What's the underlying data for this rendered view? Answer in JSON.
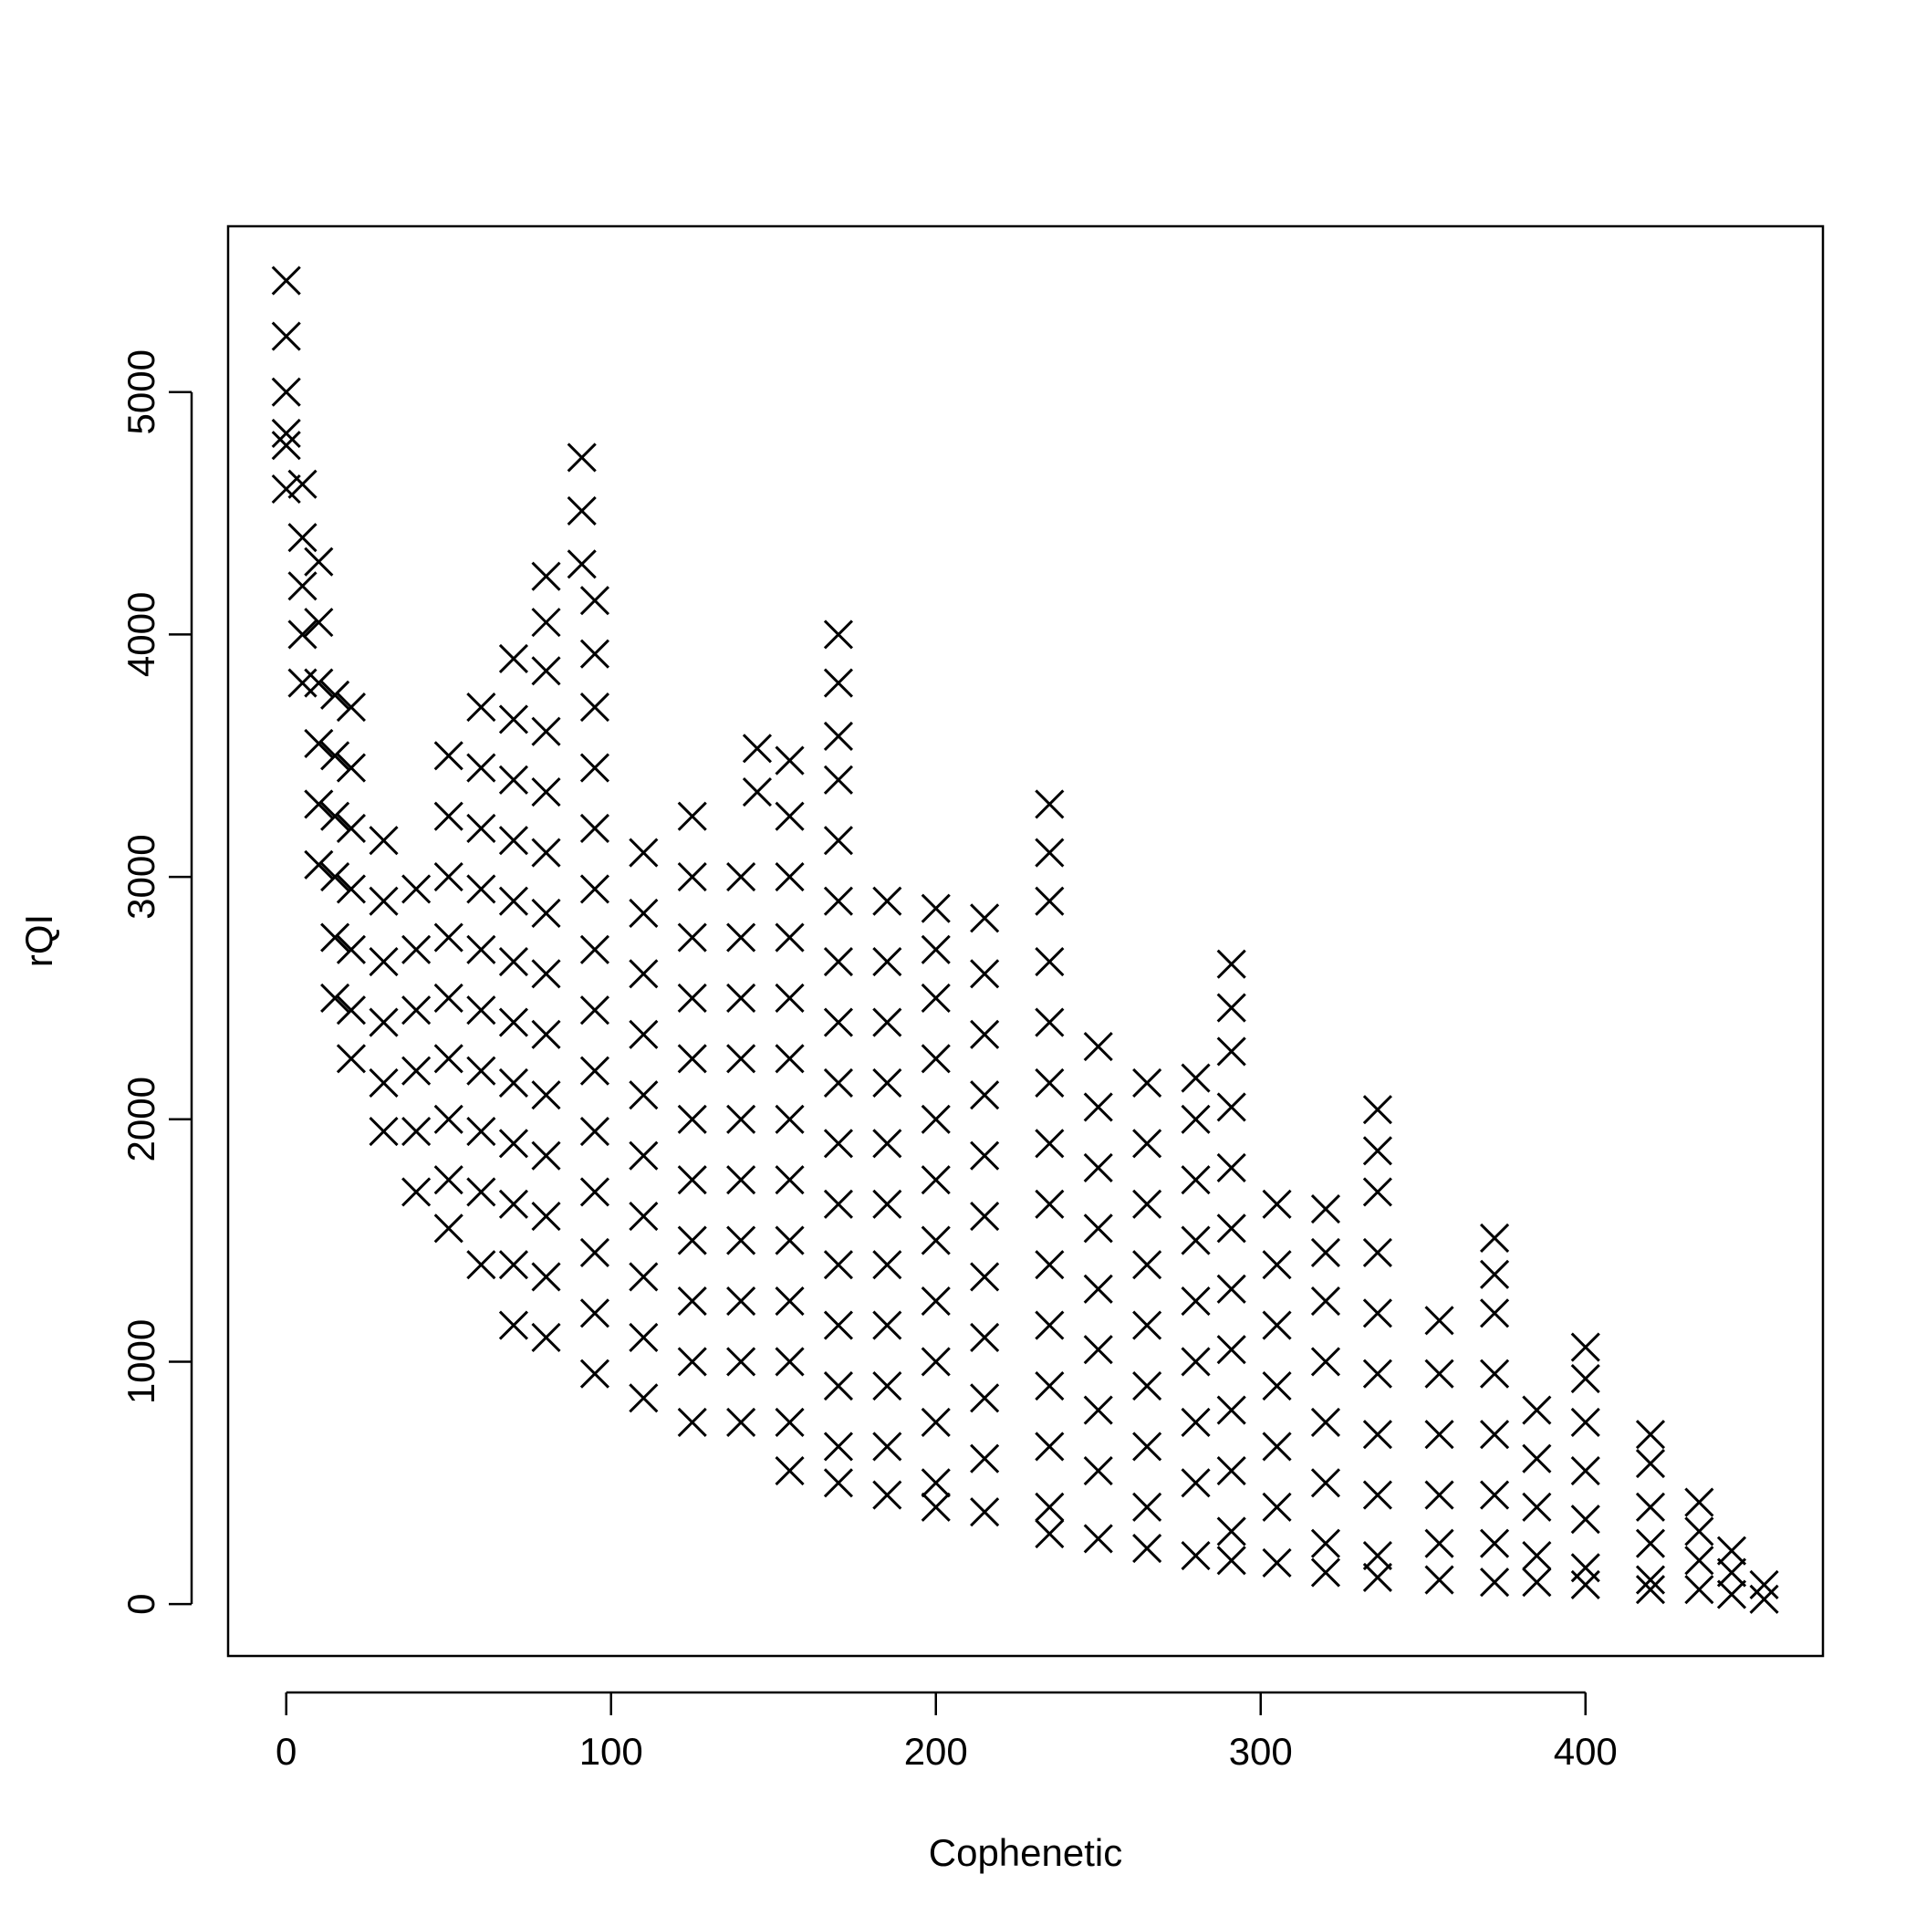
{
  "chart_data": {
    "type": "scatter",
    "xlabel": "Cophenetic",
    "ylabel": "rQI",
    "color": "#000000",
    "marker": "x",
    "x": [
      0,
      0,
      0,
      0,
      0,
      0,
      5,
      5,
      5,
      5,
      5,
      10,
      10,
      10,
      10,
      10,
      10,
      15,
      15,
      15,
      15,
      15,
      15,
      20,
      20,
      20,
      20,
      20,
      20,
      20,
      30,
      30,
      30,
      30,
      30,
      30,
      40,
      40,
      40,
      40,
      40,
      40,
      50,
      50,
      50,
      50,
      50,
      50,
      50,
      50,
      50,
      60,
      60,
      60,
      60,
      60,
      60,
      60,
      60,
      60,
      60,
      70,
      70,
      70,
      70,
      70,
      70,
      70,
      70,
      70,
      70,
      70,
      70,
      80,
      80,
      80,
      80,
      80,
      80,
      80,
      80,
      80,
      80,
      80,
      80,
      80,
      80,
      91,
      91,
      91,
      95,
      95,
      95,
      95,
      95,
      95,
      95,
      95,
      95,
      95,
      95,
      95,
      95,
      95,
      110,
      110,
      110,
      110,
      110,
      110,
      110,
      110,
      110,
      110,
      125,
      125,
      125,
      125,
      125,
      125,
      125,
      125,
      125,
      125,
      125,
      140,
      140,
      140,
      140,
      140,
      140,
      140,
      140,
      140,
      140,
      145,
      145,
      155,
      155,
      155,
      155,
      155,
      155,
      155,
      155,
      155,
      155,
      155,
      155,
      155,
      170,
      170,
      170,
      170,
      170,
      170,
      170,
      170,
      170,
      170,
      170,
      170,
      170,
      170,
      170,
      170,
      185,
      185,
      185,
      185,
      185,
      185,
      185,
      185,
      185,
      185,
      185,
      200,
      200,
      200,
      200,
      200,
      200,
      200,
      200,
      200,
      200,
      200,
      200,
      215,
      215,
      215,
      215,
      215,
      215,
      215,
      215,
      215,
      215,
      215,
      235,
      235,
      235,
      235,
      235,
      235,
      235,
      235,
      235,
      235,
      235,
      235,
      235,
      235,
      250,
      250,
      250,
      250,
      250,
      250,
      250,
      250,
      250,
      265,
      265,
      265,
      265,
      265,
      265,
      265,
      265,
      265,
      280,
      280,
      280,
      280,
      280,
      280,
      280,
      280,
      280,
      291,
      291,
      291,
      291,
      291,
      291,
      291,
      291,
      291,
      291,
      291,
      291,
      305,
      305,
      305,
      305,
      305,
      305,
      305,
      320,
      320,
      320,
      320,
      320,
      320,
      320,
      320,
      336,
      336,
      336,
      336,
      336,
      336,
      336,
      336,
      336,
      336,
      355,
      355,
      355,
      355,
      355,
      355,
      372,
      372,
      372,
      372,
      372,
      372,
      372,
      372,
      385,
      385,
      385,
      385,
      385,
      400,
      400,
      400,
      400,
      400,
      400,
      400,
      420,
      420,
      420,
      420,
      420,
      420,
      435,
      435,
      435,
      435,
      445,
      445,
      445,
      455,
      455
    ],
    "values": [
      5460,
      5230,
      5000,
      4830,
      4780,
      4600,
      4620,
      4400,
      4200,
      4000,
      3800,
      4300,
      4050,
      3800,
      3550,
      3300,
      3050,
      3750,
      3500,
      3250,
      3000,
      2750,
      2500,
      3700,
      3450,
      3200,
      2950,
      2700,
      2450,
      2250,
      3150,
      2900,
      2650,
      2400,
      2150,
      1950,
      2950,
      2700,
      2450,
      2200,
      1950,
      1700,
      3500,
      3250,
      3000,
      2750,
      2500,
      2250,
      2000,
      1750,
      1550,
      3700,
      3450,
      3200,
      2950,
      2700,
      2450,
      2200,
      1950,
      1700,
      1400,
      3900,
      3650,
      3400,
      3150,
      2900,
      2650,
      2400,
      2150,
      1900,
      1650,
      1400,
      1150,
      4240,
      4050,
      3850,
      3600,
      3350,
      3100,
      2850,
      2600,
      2350,
      2100,
      1850,
      1600,
      1350,
      1100,
      4730,
      4510,
      4290,
      4140,
      3920,
      3700,
      3450,
      3200,
      2950,
      2700,
      2450,
      2200,
      1950,
      1700,
      1450,
      1200,
      950,
      3100,
      2850,
      2600,
      2350,
      2100,
      1850,
      1600,
      1350,
      1100,
      850,
      3250,
      3000,
      2750,
      2500,
      2250,
      2000,
      1750,
      1500,
      1250,
      1000,
      750,
      3000,
      2750,
      2500,
      2250,
      2000,
      1750,
      1500,
      1250,
      1000,
      750,
      3530,
      3350,
      3480,
      3250,
      3000,
      2750,
      2500,
      2250,
      2000,
      1750,
      1500,
      1250,
      1000,
      750,
      550,
      4000,
      3800,
      3580,
      3400,
      3150,
      2900,
      2650,
      2400,
      2150,
      1900,
      1650,
      1400,
      1150,
      900,
      650,
      500,
      2900,
      2650,
      2400,
      2150,
      1900,
      1650,
      1400,
      1150,
      900,
      650,
      450,
      2870,
      2700,
      2500,
      2250,
      2000,
      1750,
      1500,
      1250,
      1000,
      750,
      500,
      400,
      2830,
      2600,
      2350,
      2100,
      1850,
      1600,
      1350,
      1100,
      850,
      600,
      380,
      3300,
      3100,
      2900,
      2650,
      2400,
      2150,
      1900,
      1650,
      1400,
      1150,
      900,
      650,
      400,
      290,
      2300,
      2050,
      1800,
      1550,
      1300,
      1050,
      800,
      550,
      270,
      2150,
      1900,
      1650,
      1400,
      1150,
      900,
      650,
      400,
      230,
      2170,
      2000,
      1750,
      1500,
      1250,
      1000,
      750,
      500,
      200,
      2640,
      2460,
      2280,
      2050,
      1800,
      1550,
      1300,
      1050,
      800,
      550,
      300,
      180,
      1650,
      1400,
      1150,
      900,
      650,
      400,
      170,
      1630,
      1450,
      1250,
      1000,
      750,
      500,
      250,
      130,
      2040,
      1870,
      1700,
      1450,
      1200,
      950,
      700,
      450,
      200,
      110,
      1170,
      950,
      700,
      450,
      250,
      100,
      1510,
      1360,
      1200,
      950,
      700,
      450,
      250,
      90,
      800,
      600,
      400,
      200,
      90,
      1060,
      930,
      750,
      550,
      350,
      150,
      80,
      700,
      580,
      400,
      250,
      100,
      60,
      420,
      300,
      180,
      60,
      220,
      130,
      40,
      80,
      20
    ],
    "xlim": [
      -17.9,
      473.1
    ],
    "ylim": [
      -214,
      5684
    ],
    "xticks": [
      0,
      100,
      200,
      300,
      400
    ],
    "yticks": [
      0,
      1000,
      2000,
      3000,
      4000,
      5000
    ]
  }
}
